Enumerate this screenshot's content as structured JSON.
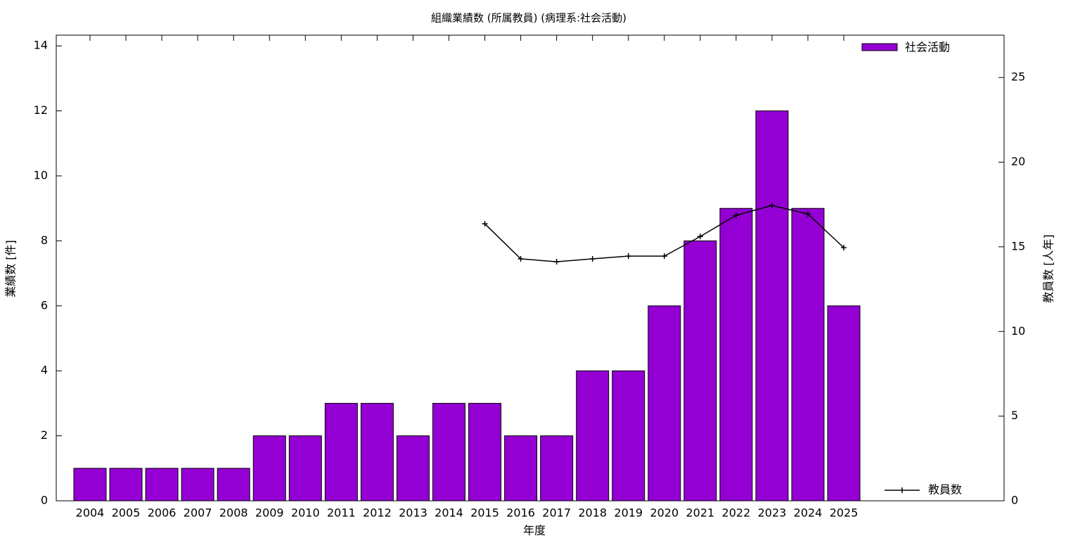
{
  "chart_data": {
    "type": "bar",
    "title": "組織業績数 (所属教員) (病理系:社会活動)",
    "x_label": "年度",
    "y_label": "業績数 [件]",
    "y2_label": "教員数 [人年]",
    "categories": [
      "2004",
      "2005",
      "2006",
      "2007",
      "2008",
      "2009",
      "2010",
      "2011",
      "2012",
      "2013",
      "2014",
      "2015",
      "2016",
      "2017",
      "2018",
      "2019",
      "2020",
      "2021",
      "2022",
      "2023",
      "2024",
      "2025"
    ],
    "series": [
      {
        "name": "社会活動",
        "type": "bar",
        "color": "#9400d3",
        "values": [
          1,
          1,
          1,
          1,
          1,
          2,
          2,
          3,
          3,
          2,
          3,
          3,
          2,
          2,
          4,
          4,
          6,
          8,
          9,
          12,
          9,
          6
        ]
      },
      {
        "name": "教員数",
        "type": "line",
        "axis": "y2",
        "color": "#000000",
        "values": [
          null,
          null,
          null,
          null,
          null,
          null,
          null,
          null,
          null,
          null,
          null,
          16.36,
          14.29,
          14.12,
          14.29,
          14.45,
          14.45,
          15.61,
          16.86,
          17.44,
          16.94,
          14.95
        ]
      }
    ],
    "ylim": [
      0,
      14.33
    ],
    "yticks": [
      0,
      2,
      4,
      6,
      8,
      10,
      12,
      14
    ],
    "y2lim": [
      0,
      27.5
    ],
    "y2ticks": [
      0,
      5,
      10,
      15,
      20,
      25
    ]
  }
}
